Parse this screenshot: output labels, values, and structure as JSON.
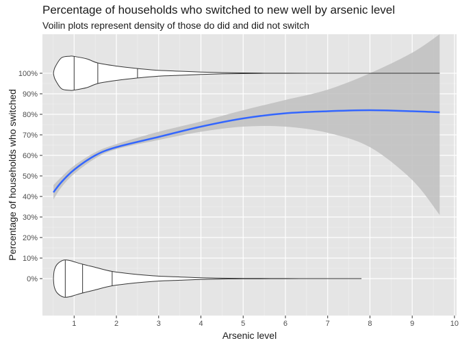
{
  "chart_data": {
    "type": "line",
    "title": "Percentage of households who switched to new well by arsenic level",
    "subtitle": "Voilin plots represent density of those do did and did not switch",
    "xlabel": "Arsenic level",
    "ylabel": "Percentage of households who switched",
    "xlim": [
      0.25,
      10.05
    ],
    "ylim": [
      -0.18,
      1.19
    ],
    "x_ticks": [
      1,
      2,
      3,
      4,
      5,
      6,
      7,
      8,
      9,
      10
    ],
    "y_ticks": [
      0,
      0.1,
      0.2,
      0.3,
      0.4,
      0.5,
      0.6,
      0.7,
      0.8,
      0.9,
      1.0
    ],
    "y_tick_labels": [
      "0%",
      "10%",
      "20%",
      "30%",
      "40%",
      "50%",
      "60%",
      "70%",
      "80%",
      "90%",
      "100%"
    ],
    "grid": true,
    "colors": {
      "line": "#3366ff",
      "ribbon": "#bfbfbf",
      "panel": "#e5e5e5",
      "violin_stroke": "#333333"
    },
    "smooth": {
      "x": [
        0.51,
        0.7,
        1.0,
        1.5,
        2.0,
        3.0,
        4.0,
        5.0,
        6.0,
        7.0,
        8.0,
        9.0,
        9.65
      ],
      "y": [
        0.42,
        0.47,
        0.53,
        0.6,
        0.64,
        0.69,
        0.74,
        0.78,
        0.805,
        0.815,
        0.82,
        0.815,
        0.81
      ],
      "lower": [
        0.385,
        0.445,
        0.51,
        0.585,
        0.63,
        0.675,
        0.715,
        0.74,
        0.74,
        0.71,
        0.64,
        0.48,
        0.31
      ],
      "upper": [
        0.455,
        0.495,
        0.55,
        0.615,
        0.655,
        0.715,
        0.765,
        0.82,
        0.87,
        0.92,
        1.0,
        1.1,
        1.19
      ]
    },
    "violins": [
      {
        "y": 1.0,
        "x": [
          0.51,
          0.55,
          0.7,
          0.9,
          1.0,
          1.3,
          1.56,
          2.0,
          2.5,
          3.0,
          3.5,
          4.0,
          4.5,
          5.0,
          5.5,
          6.0,
          7.0,
          8.0,
          9.0,
          9.65
        ],
        "width": [
          0,
          0.03,
          0.075,
          0.083,
          0.082,
          0.07,
          0.05,
          0.035,
          0.023,
          0.014,
          0.01,
          0.006,
          0.003,
          0.0015,
          0.0006,
          0.0003,
          0.0001,
          5e-05,
          2e-05,
          0
        ],
        "quantiles": [
          1.0,
          1.56,
          2.5
        ]
      },
      {
        "y": 0.0,
        "x": [
          0.51,
          0.53,
          0.6,
          0.75,
          0.9,
          1.0,
          1.2,
          1.5,
          1.9,
          2.5,
          3.0,
          3.5,
          4.0,
          4.5,
          5.0,
          6.0,
          7.0,
          7.8
        ],
        "width": [
          0,
          0.04,
          0.07,
          0.09,
          0.088,
          0.082,
          0.07,
          0.055,
          0.035,
          0.02,
          0.012,
          0.008,
          0.004,
          0.002,
          0.001,
          0.0003,
          0.0001,
          0
        ],
        "quantiles": [
          0.79,
          1.2,
          1.9
        ]
      }
    ]
  }
}
